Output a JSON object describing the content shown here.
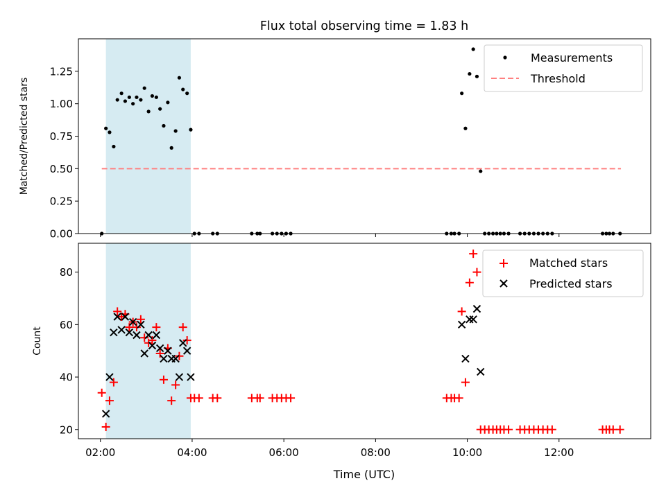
{
  "chart_data": {
    "title": "Flux total observing time = 1.83 h",
    "shared_x": {
      "label": "Time (UTC)",
      "unit": "hours_utc",
      "range": [
        1.52,
        14.0
      ],
      "ticks": [
        2,
        4,
        6,
        8,
        10,
        12
      ],
      "tick_labels": [
        "02:00",
        "04:00",
        "06:00",
        "08:00",
        "10:00",
        "12:00"
      ],
      "highlight_span": [
        2.12,
        3.97
      ],
      "highlight_color": "#add8e6"
    },
    "panels": [
      {
        "type": "scatter",
        "ylabel": "Matched/Predicted stars",
        "ylim": [
          0,
          1.5
        ],
        "yticks": [
          0,
          0.25,
          0.5,
          0.75,
          1.0,
          1.25
        ],
        "ytick_labels": [
          "0.00",
          "0.25",
          "0.50",
          "0.75",
          "1.00",
          "1.25"
        ],
        "legend": {
          "position": "top-right",
          "entries": [
            "Measurements",
            "Threshold"
          ]
        },
        "threshold": {
          "name": "Threshold",
          "y": 0.5,
          "x_range": [
            2.03,
            13.35
          ],
          "color": "#ff8080"
        },
        "series": [
          {
            "name": "Measurements",
            "color": "#000000",
            "points": [
              [
                2.03,
                0.0
              ],
              [
                2.12,
                0.81
              ],
              [
                2.2,
                0.78
              ],
              [
                2.29,
                0.67
              ],
              [
                2.37,
                1.03
              ],
              [
                2.46,
                1.08
              ],
              [
                2.54,
                1.02
              ],
              [
                2.63,
                1.05
              ],
              [
                2.71,
                1.0
              ],
              [
                2.79,
                1.05
              ],
              [
                2.88,
                1.03
              ],
              [
                2.96,
                1.12
              ],
              [
                3.05,
                0.94
              ],
              [
                3.13,
                1.06
              ],
              [
                3.22,
                1.05
              ],
              [
                3.3,
                0.96
              ],
              [
                3.38,
                0.83
              ],
              [
                3.47,
                1.01
              ],
              [
                3.55,
                0.66
              ],
              [
                3.64,
                0.79
              ],
              [
                3.72,
                1.2
              ],
              [
                3.8,
                1.11
              ],
              [
                3.89,
                1.08
              ],
              [
                3.97,
                0.8
              ],
              [
                4.05,
                0.0
              ],
              [
                4.15,
                0.0
              ],
              [
                4.45,
                0.0
              ],
              [
                4.55,
                0.0
              ],
              [
                5.3,
                0.0
              ],
              [
                5.42,
                0.0
              ],
              [
                5.48,
                0.0
              ],
              [
                5.75,
                0.0
              ],
              [
                5.85,
                0.0
              ],
              [
                5.95,
                0.0
              ],
              [
                6.05,
                0.0
              ],
              [
                6.15,
                0.0
              ],
              [
                9.55,
                0.0
              ],
              [
                9.65,
                0.0
              ],
              [
                9.72,
                0.0
              ],
              [
                9.82,
                0.0
              ],
              [
                9.88,
                1.08
              ],
              [
                9.96,
                0.81
              ],
              [
                10.05,
                1.23
              ],
              [
                10.13,
                1.42
              ],
              [
                10.21,
                1.21
              ],
              [
                10.29,
                0.48
              ],
              [
                10.38,
                0.0
              ],
              [
                10.47,
                0.0
              ],
              [
                10.56,
                0.0
              ],
              [
                10.64,
                0.0
              ],
              [
                10.72,
                0.0
              ],
              [
                10.8,
                0.0
              ],
              [
                10.9,
                0.0
              ],
              [
                11.15,
                0.0
              ],
              [
                11.25,
                0.0
              ],
              [
                11.35,
                0.0
              ],
              [
                11.45,
                0.0
              ],
              [
                11.55,
                0.0
              ],
              [
                11.65,
                0.0
              ],
              [
                11.75,
                0.0
              ],
              [
                11.85,
                0.0
              ],
              [
                12.95,
                0.0
              ],
              [
                13.03,
                0.0
              ],
              [
                13.1,
                0.0
              ],
              [
                13.18,
                0.0
              ],
              [
                13.33,
                0.0
              ]
            ]
          }
        ]
      },
      {
        "type": "scatter",
        "ylabel": "Count",
        "ylim": [
          16.5,
          91
        ],
        "yticks": [
          20,
          40,
          60,
          80
        ],
        "ytick_labels": [
          "20",
          "40",
          "60",
          "80"
        ],
        "legend": {
          "position": "top-right",
          "entries": [
            "Matched stars",
            "Predicted stars"
          ]
        },
        "series": [
          {
            "name": "Matched stars",
            "marker": "plus",
            "color": "#ff0000",
            "points": [
              [
                2.03,
                34
              ],
              [
                2.12,
                21
              ],
              [
                2.2,
                31
              ],
              [
                2.29,
                38
              ],
              [
                2.37,
                65
              ],
              [
                2.46,
                63
              ],
              [
                2.54,
                64
              ],
              [
                2.63,
                59
              ],
              [
                2.71,
                61
              ],
              [
                2.79,
                59
              ],
              [
                2.88,
                62
              ],
              [
                2.96,
                55
              ],
              [
                3.05,
                53
              ],
              [
                3.13,
                54
              ],
              [
                3.22,
                59
              ],
              [
                3.3,
                49
              ],
              [
                3.38,
                39
              ],
              [
                3.47,
                51
              ],
              [
                3.55,
                31
              ],
              [
                3.64,
                37
              ],
              [
                3.72,
                48
              ],
              [
                3.8,
                59
              ],
              [
                3.89,
                54
              ],
              [
                3.97,
                32
              ],
              [
                4.05,
                32
              ],
              [
                4.15,
                32
              ],
              [
                4.45,
                32
              ],
              [
                4.55,
                32
              ],
              [
                5.3,
                32
              ],
              [
                5.42,
                32
              ],
              [
                5.48,
                32
              ],
              [
                5.75,
                32
              ],
              [
                5.85,
                32
              ],
              [
                5.95,
                32
              ],
              [
                6.05,
                32
              ],
              [
                6.15,
                32
              ],
              [
                9.55,
                32
              ],
              [
                9.65,
                32
              ],
              [
                9.72,
                32
              ],
              [
                9.82,
                32
              ],
              [
                9.88,
                65
              ],
              [
                9.96,
                38
              ],
              [
                10.05,
                76
              ],
              [
                10.13,
                87
              ],
              [
                10.21,
                80
              ],
              [
                10.29,
                20
              ],
              [
                10.38,
                20
              ],
              [
                10.47,
                20
              ],
              [
                10.56,
                20
              ],
              [
                10.64,
                20
              ],
              [
                10.72,
                20
              ],
              [
                10.8,
                20
              ],
              [
                10.9,
                20
              ],
              [
                11.15,
                20
              ],
              [
                11.25,
                20
              ],
              [
                11.35,
                20
              ],
              [
                11.45,
                20
              ],
              [
                11.55,
                20
              ],
              [
                11.65,
                20
              ],
              [
                11.75,
                20
              ],
              [
                11.85,
                20
              ],
              [
                12.95,
                20
              ],
              [
                13.03,
                20
              ],
              [
                13.1,
                20
              ],
              [
                13.18,
                20
              ],
              [
                13.33,
                20
              ]
            ]
          },
          {
            "name": "Predicted stars",
            "marker": "x",
            "color": "#000000",
            "points": [
              [
                2.12,
                26
              ],
              [
                2.2,
                40
              ],
              [
                2.29,
                57
              ],
              [
                2.37,
                63
              ],
              [
                2.46,
                58
              ],
              [
                2.54,
                63
              ],
              [
                2.63,
                57
              ],
              [
                2.71,
                61
              ],
              [
                2.79,
                56
              ],
              [
                2.88,
                60
              ],
              [
                2.96,
                49
              ],
              [
                3.05,
                56
              ],
              [
                3.13,
                52
              ],
              [
                3.22,
                56
              ],
              [
                3.3,
                51
              ],
              [
                3.38,
                47
              ],
              [
                3.47,
                50
              ],
              [
                3.55,
                47
              ],
              [
                3.64,
                47
              ],
              [
                3.72,
                40
              ],
              [
                3.8,
                53
              ],
              [
                3.89,
                50
              ],
              [
                3.97,
                40
              ],
              [
                9.88,
                60
              ],
              [
                9.96,
                47
              ],
              [
                10.05,
                62
              ],
              [
                10.13,
                62
              ],
              [
                10.21,
                66
              ],
              [
                10.29,
                42
              ]
            ]
          }
        ]
      }
    ]
  }
}
